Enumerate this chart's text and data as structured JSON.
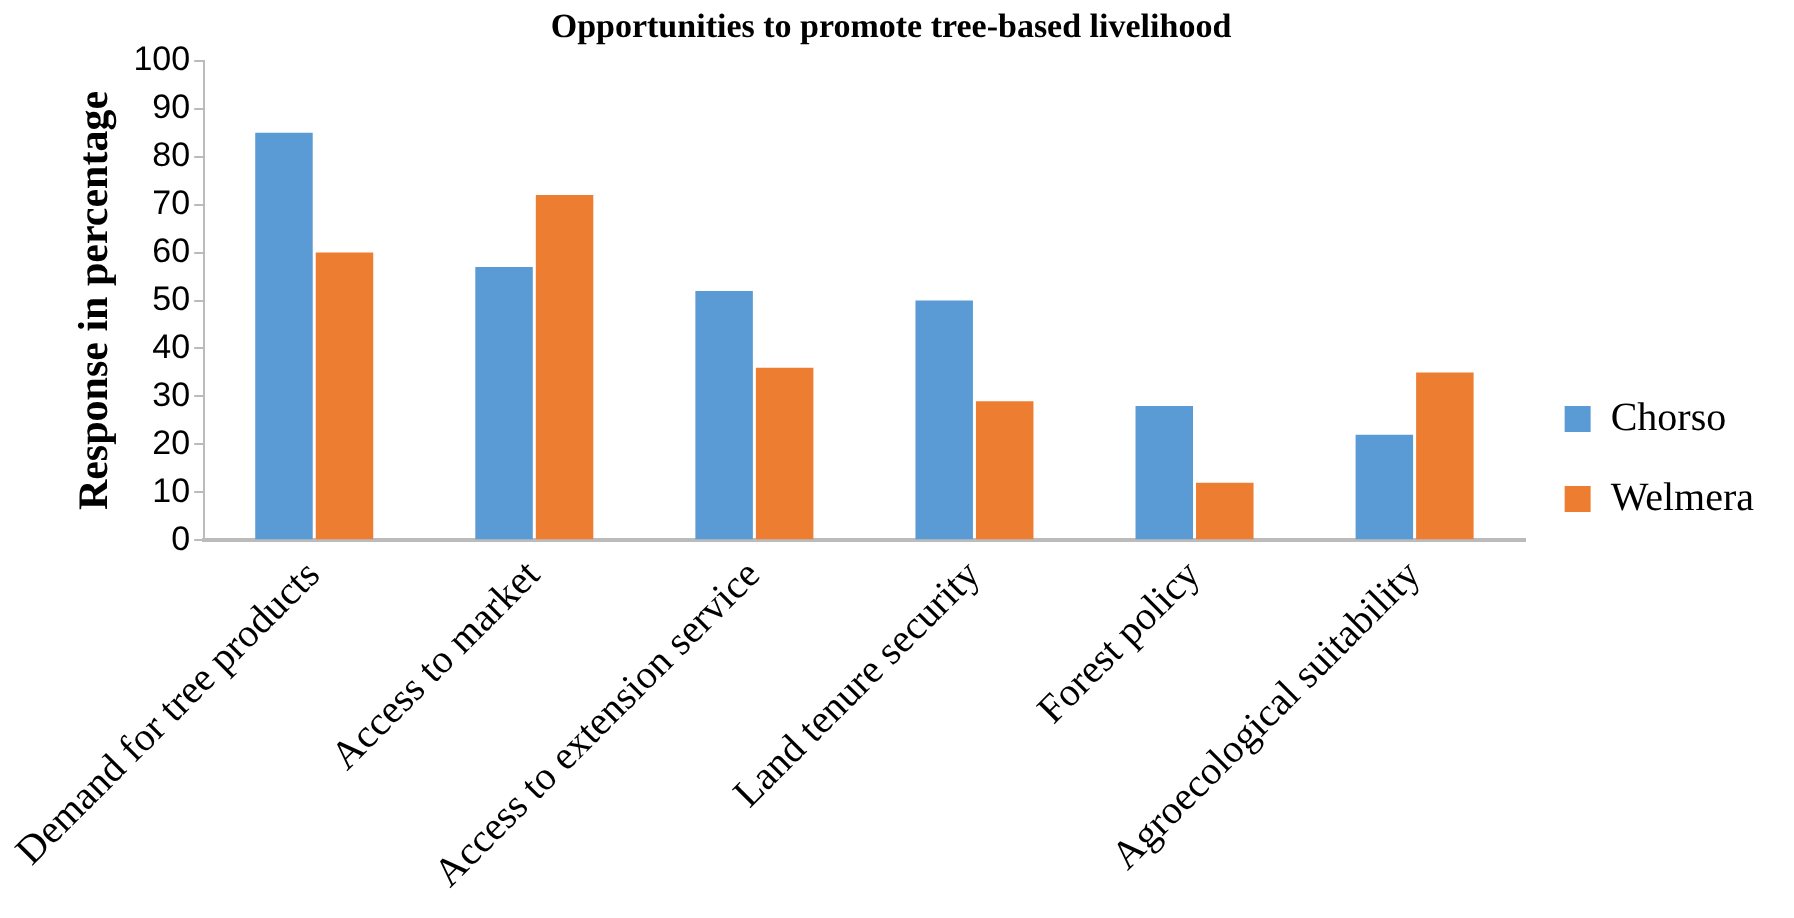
{
  "chart_data": {
    "type": "bar",
    "title": "Opportunities to promote tree-based livelihood",
    "ylabel": "Response in percentage",
    "categories": [
      "Demand for tree products",
      "Access to market",
      "Access to extension service",
      "Land tenure security",
      "Forest policy",
      "Agroecological suitability"
    ],
    "series": [
      {
        "name": "Chorso",
        "color": "#5b9bd5",
        "values": [
          85,
          57,
          52,
          50,
          28,
          22
        ]
      },
      {
        "name": "Welmera",
        "color": "#ed7d31",
        "values": [
          60,
          72,
          36,
          29,
          12,
          35
        ]
      }
    ],
    "ylim": [
      0,
      100
    ],
    "yticks": [
      0,
      10,
      20,
      30,
      40,
      50,
      60,
      70,
      80,
      90,
      100
    ],
    "grid": false,
    "legend": "right"
  }
}
